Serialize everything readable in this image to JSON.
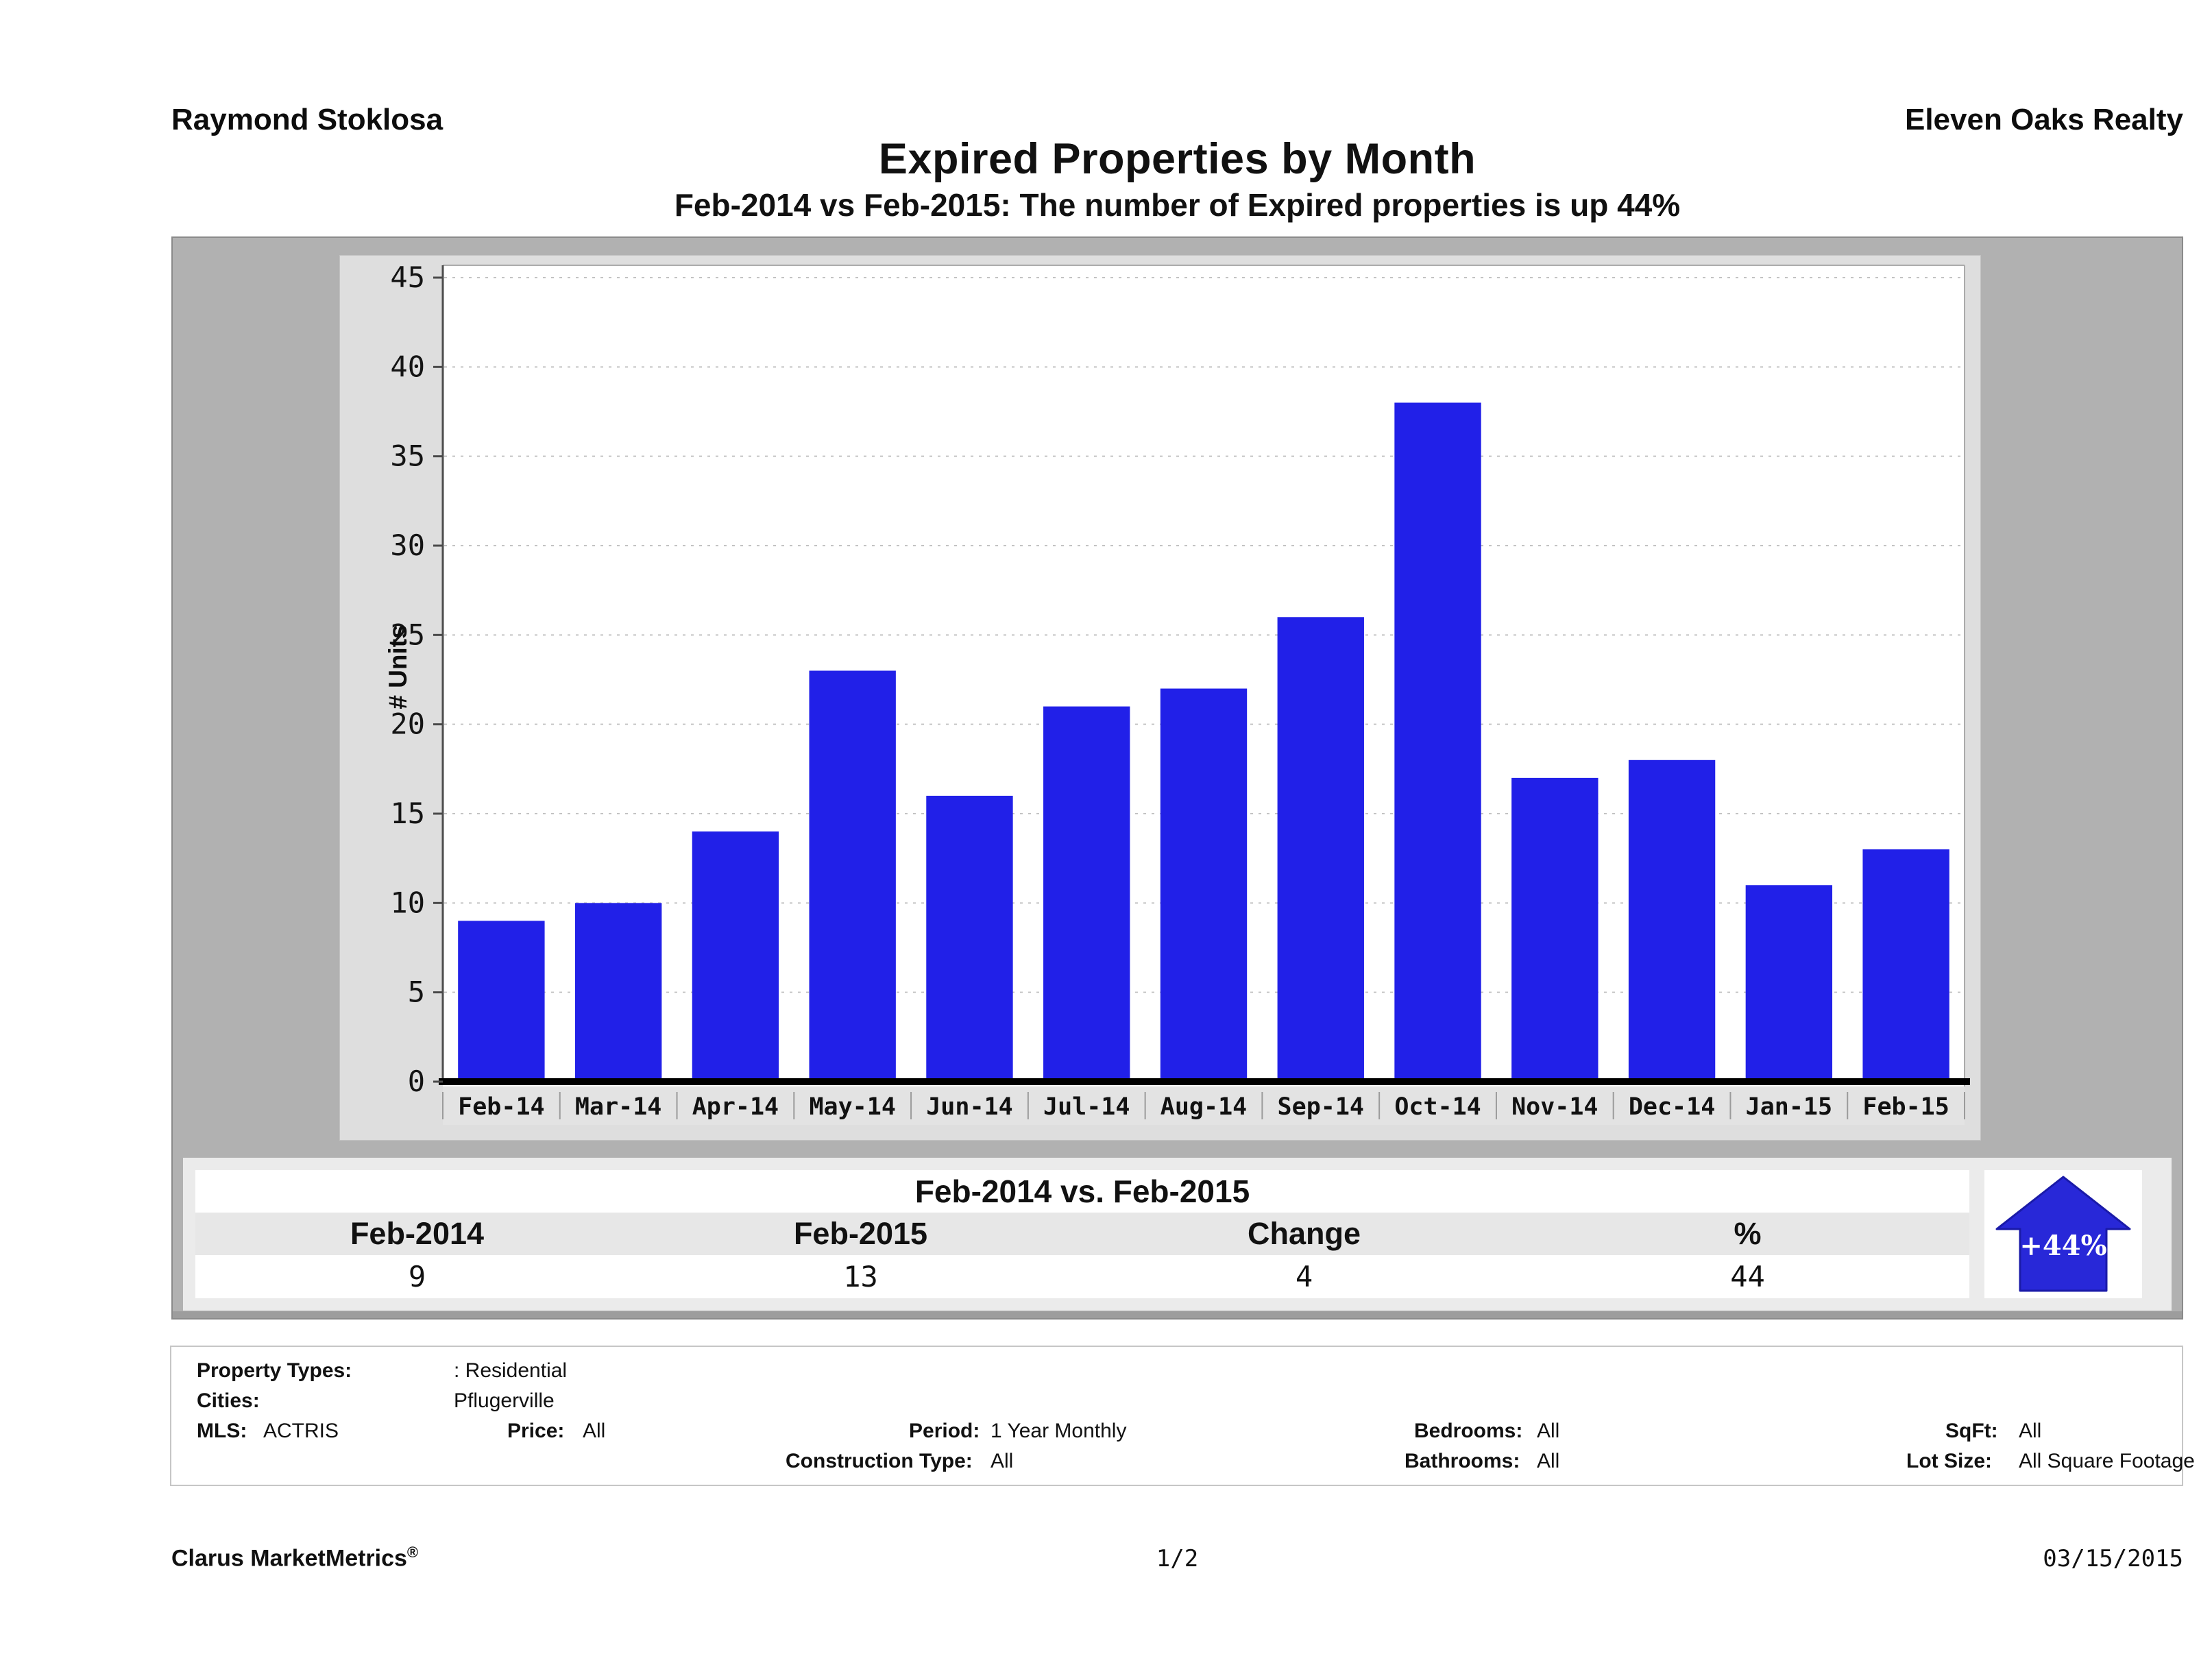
{
  "header": {
    "agent": "Raymond Stoklosa",
    "company": "Eleven Oaks Realty"
  },
  "title": "Expired Properties by Month",
  "subtitle": "Feb-2014 vs Feb-2015: The number of Expired  properties is up 44%",
  "chart_data": {
    "type": "bar",
    "categories": [
      "Feb-14",
      "Mar-14",
      "Apr-14",
      "May-14",
      "Jun-14",
      "Jul-14",
      "Aug-14",
      "Sep-14",
      "Oct-14",
      "Nov-14",
      "Dec-14",
      "Jan-15",
      "Feb-15"
    ],
    "values": [
      9,
      10,
      14,
      23,
      16,
      21,
      22,
      26,
      38,
      17,
      18,
      11,
      13
    ],
    "title": "Expired Properties by Month",
    "xlabel": "",
    "ylabel": "# Units",
    "ylim": [
      0,
      45
    ],
    "ytick_step": 5,
    "grid": true,
    "legend": "none",
    "bar_color": "#2120E8"
  },
  "summary": {
    "title": "Feb-2014 vs. Feb-2015",
    "columns": [
      "Feb-2014",
      "Feb-2015",
      "Change",
      "%"
    ],
    "values": [
      "9",
      "13",
      "4",
      "44"
    ],
    "badge": "+44%"
  },
  "details": {
    "property_types_label": "Property Types:",
    "property_types_value": ": Residential",
    "cities_label": "Cities:",
    "cities_value": "Pflugerville",
    "mls_label": "MLS:",
    "mls_value": "ACTRIS",
    "price_label": "Price:",
    "price_value": "All",
    "period_label": "Period:",
    "period_value": "1 Year Monthly",
    "construction_label": "Construction Type:",
    "construction_value": "All",
    "bedrooms_label": "Bedrooms:",
    "bedrooms_value": "All",
    "bathrooms_label": "Bathrooms:",
    "bathrooms_value": "All",
    "sqft_label": "SqFt:",
    "sqft_value": "All",
    "lot_label": "Lot Size:",
    "lot_value": "All Square Footage"
  },
  "footer": {
    "brand": "Clarus MarketMetrics",
    "brand_mark": "®",
    "page": "1/2",
    "date": "03/15/2015"
  },
  "colors": {
    "bar_blue": "#2120E8",
    "arrow_blue": "#2828D8",
    "panel_gray": "#b1b1b1",
    "inner_gray": "#dedede"
  }
}
